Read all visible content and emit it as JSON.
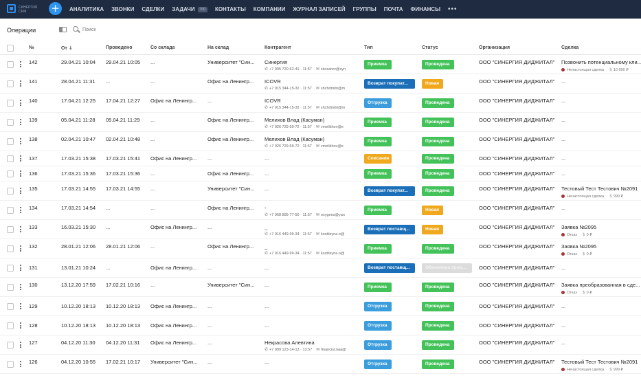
{
  "app": {
    "logo_text": "СИНЕРГИЯ CRM",
    "add_label": "+"
  },
  "nav": {
    "items": [
      "АНАЛИТИКА",
      "ЗВОНКИ",
      "СДЕЛКИ",
      "ЗАДАЧИ",
      "КОНТАКТЫ",
      "КОМПАНИИ",
      "ЖУРНАЛ ЗАПИСЕЙ",
      "ГРУППЫ",
      "ПОЧТА",
      "ФИНАНСЫ"
    ],
    "tasks_badge": "700",
    "more": "•••"
  },
  "toolbar": {
    "title": "Операции",
    "search_placeholder": "Поиск"
  },
  "columns": {
    "num": "№",
    "from": "От",
    "done": "Проведено",
    "from_wh": "Со склада",
    "to_wh": "На склад",
    "counterparty": "Контрагент",
    "type": "Тип",
    "status": "Статус",
    "org": "Организация",
    "deal": "Сделка"
  },
  "colors": {
    "green": "#44c25a",
    "blue_dark": "#1a6fb8",
    "blue": "#3b9ddc",
    "orange": "#f0a81c",
    "gray": "#dcdcdc"
  },
  "rows": [
    {
      "num": "142",
      "from": "29.04.21 10:04",
      "done": "29.04.21 10:05",
      "from_wh": "...",
      "to_wh": "Университет \"Син...",
      "cp": "Синергия",
      "cp_phone": "+7 905 720-62-41 · 11:57",
      "cp_mail": "skosarev@syn",
      "type": "Приемка",
      "type_color": "green",
      "status": "Проведена",
      "status_color": "green",
      "org": "ООО \"СИНЕРГИЯ ДИДЖИТАЛ\"",
      "deal": "Позвонить потенциальному кли...",
      "deal_stage": "Ненастоящая сделка",
      "deal_sum": "10 000 ₽"
    },
    {
      "num": "141",
      "from": "28.04.21 11:31",
      "done": "...",
      "from_wh": "...",
      "to_wh": "Офис на Ленингр...",
      "cp": "ICOVR",
      "cp_phone": "+7 915 344-15-32 · 11:57",
      "cp_mail": "shchdmitri@m",
      "type": "Возврат покупат...",
      "type_color": "blue_dark",
      "status": "Новая",
      "status_color": "orange",
      "org": "ООО \"СИНЕРГИЯ ДИДЖИТАЛ\"",
      "deal": "...",
      "deal_stage": "",
      "deal_sum": ""
    },
    {
      "num": "140",
      "from": "17.04.21 12:25",
      "done": "17.04.21 12:27",
      "from_wh": "Офис на Ленингр...",
      "to_wh": "...",
      "cp": "ICOVR",
      "cp_phone": "+7 915 344-15-32 · 11:57",
      "cp_mail": "shchdmitri@m",
      "type": "Отгрузка",
      "type_color": "blue",
      "status": "Проведена",
      "status_color": "green",
      "org": "ООО \"СИНЕРГИЯ ДИДЖИТАЛ\"",
      "deal": "...",
      "deal_stage": "",
      "deal_sum": ""
    },
    {
      "num": "139",
      "from": "05.04.21 11:28",
      "done": "05.04.21 11:29",
      "from_wh": "...",
      "to_wh": "Офис на Ленингр...",
      "cp": "Мелихов Влад (Касуман)",
      "cp_phone": "+7 926 729-59-72 · 11:57",
      "cp_mail": "vmelikhov@e",
      "type": "Приемка",
      "type_color": "green",
      "status": "Проведена",
      "status_color": "green",
      "org": "ООО \"СИНЕРГИЯ ДИДЖИТАЛ\"",
      "deal": "...",
      "deal_stage": "",
      "deal_sum": ""
    },
    {
      "num": "138",
      "from": "02.04.21 10:47",
      "done": "02.04.21 10:48",
      "from_wh": "...",
      "to_wh": "Офис на Ленингр...",
      "cp": "Мелихов Влад (Касуман)",
      "cp_phone": "+7 926 729-59-72 · 11:57",
      "cp_mail": "vmelikhov@e",
      "type": "Приемка",
      "type_color": "green",
      "status": "Проведена",
      "status_color": "green",
      "org": "ООО \"СИНЕРГИЯ ДИДЖИТАЛ\"",
      "deal": "...",
      "deal_stage": "",
      "deal_sum": ""
    },
    {
      "num": "137",
      "from": "17.03.21 15:38",
      "done": "17.03.21 15:41",
      "from_wh": "Офис на Ленингр...",
      "to_wh": "...",
      "cp": "...",
      "cp_phone": "",
      "cp_mail": "",
      "type": "Списание",
      "type_color": "orange",
      "status": "Проведена",
      "status_color": "green",
      "org": "ООО \"СИНЕРГИЯ ДИДЖИТАЛ\"",
      "deal": "...",
      "deal_stage": "",
      "deal_sum": ""
    },
    {
      "num": "136",
      "from": "17.03.21 15:36",
      "done": "17.03.21 15:36",
      "from_wh": "...",
      "to_wh": "Офис на Ленингр...",
      "cp": "...",
      "cp_phone": "",
      "cp_mail": "",
      "type": "Приемка",
      "type_color": "green",
      "status": "Проведена",
      "status_color": "green",
      "org": "ООО \"СИНЕРГИЯ ДИДЖИТАЛ\"",
      "deal": "...",
      "deal_stage": "",
      "deal_sum": ""
    },
    {
      "num": "135",
      "from": "17.03.21 14:55",
      "done": "17.03.21 14:55",
      "from_wh": "...",
      "to_wh": "Университет \"Син...",
      "cp": "...",
      "cp_phone": "",
      "cp_mail": "",
      "type": "Возврат покупат...",
      "type_color": "blue_dark",
      "status": "Проведена",
      "status_color": "green",
      "org": "ООО \"СИНЕРГИЯ ДИДЖИТАЛ\"",
      "deal": "Тестовый Тест Тестович №2091",
      "deal_stage": "Ненастоящая сделка",
      "deal_sum": "999 ₽"
    },
    {
      "num": "134",
      "from": "17.03.21 14:54",
      "done": "...",
      "from_wh": "...",
      "to_wh": "Офис на Ленингр...",
      "cp": "-",
      "cp_phone": "+7 968 895-77-50 · 11:57",
      "cp_mail": "oxygens@yan",
      "type": "Приемка",
      "type_color": "green",
      "status": "Новая",
      "status_color": "orange",
      "org": "ООО \"СИНЕРГИЯ ДИДЖИТАЛ\"",
      "deal": "...",
      "deal_stage": "",
      "deal_sum": ""
    },
    {
      "num": "133",
      "from": "16.03.21 15:30",
      "done": "...",
      "from_wh": "Офис на Ленингр...",
      "to_wh": "...",
      "cp": "_",
      "cp_phone": "+7 916 449-99-34 · 11:57",
      "cp_mail": "kostitsyna.o@",
      "type": "Возврат поставщ...",
      "type_color": "blue_dark",
      "status": "Новая",
      "status_color": "orange",
      "org": "ООО \"СИНЕРГИЯ ДИДЖИТАЛ\"",
      "deal": "Заявка №2095",
      "deal_stage": "Отказ",
      "deal_sum": "0 ₽"
    },
    {
      "num": "132",
      "from": "28.01.21 12:06",
      "done": "28.01.21 12:06",
      "from_wh": "...",
      "to_wh": "Офис на Ленингр...",
      "cp": "_",
      "cp_phone": "+7 916 449-99-34 · 11:57",
      "cp_mail": "kostitsyna.o@",
      "type": "Приемка",
      "type_color": "green",
      "status": "Проведена",
      "status_color": "green",
      "org": "ООО \"СИНЕРГИЯ ДИДЖИТАЛ\"",
      "deal": "Заявка №2095",
      "deal_stage": "Отказ",
      "deal_sum": "0 ₽"
    },
    {
      "num": "131",
      "from": "13.01.21 10:24",
      "done": "...",
      "from_wh": "Офис на Ленингр...",
      "to_wh": "...",
      "cp": "...",
      "cp_phone": "",
      "cp_mail": "",
      "type": "Возврат поставщ...",
      "type_color": "blue_dark",
      "status": "Обновлена пров...",
      "status_color": "gray",
      "org": "ООО \"СИНЕРГИЯ ДИДЖИТАЛ\"",
      "deal": "...",
      "deal_stage": "",
      "deal_sum": ""
    },
    {
      "num": "130",
      "from": "13.12.20 17:59",
      "done": "17.02.21 10:16",
      "from_wh": "...",
      "to_wh": "Университет \"Син...",
      "cp": "...",
      "cp_phone": "",
      "cp_mail": "",
      "type": "Приемка",
      "type_color": "green",
      "status": "Проведена",
      "status_color": "green",
      "org": "ООО \"СИНЕРГИЯ ДИДЖИТАЛ\"",
      "deal": "Заявка преобразованная в сде...",
      "deal_stage": "Отказ",
      "deal_sum": "0 ₽"
    },
    {
      "num": "129",
      "from": "10.12.20 18:13",
      "done": "10.12.20 18:13",
      "from_wh": "Офис на Ленингр...",
      "to_wh": "...",
      "cp": "...",
      "cp_phone": "",
      "cp_mail": "",
      "type": "Отгрузка",
      "type_color": "blue",
      "status": "Проведена",
      "status_color": "green",
      "org": "ООО \"СИНЕРГИЯ ДИДЖИТАЛ\"",
      "deal": "...",
      "deal_stage": "",
      "deal_sum": ""
    },
    {
      "num": "128",
      "from": "10.12.20 18:13",
      "done": "10.12.20 18:13",
      "from_wh": "Офис на Ленингр...",
      "to_wh": "...",
      "cp": "...",
      "cp_phone": "",
      "cp_mail": "",
      "type": "Отгрузка",
      "type_color": "blue",
      "status": "Проведена",
      "status_color": "green",
      "org": "ООО \"СИНЕРГИЯ ДИДЖИТАЛ\"",
      "deal": "...",
      "deal_stage": "",
      "deal_sum": ""
    },
    {
      "num": "127",
      "from": "04.12.20 11:30",
      "done": "04.12.20 11:31",
      "from_wh": "Офис на Ленингр...",
      "to_wh": "...",
      "cp": "Некрасова Алевтина",
      "cp_phone": "+7 999 123-14-13 · 13:57",
      "cp_mail": "financist.naa@",
      "type": "Отгрузка",
      "type_color": "blue",
      "status": "Проведена",
      "status_color": "green",
      "org": "ООО \"СИНЕРГИЯ ДИДЖИТАЛ\"",
      "deal": "...",
      "deal_stage": "",
      "deal_sum": ""
    },
    {
      "num": "126",
      "from": "04.12.20 10:55",
      "done": "17.02.21 10:17",
      "from_wh": "Университет \"Син...",
      "to_wh": "...",
      "cp": "...",
      "cp_phone": "",
      "cp_mail": "",
      "type": "Отгрузка",
      "type_color": "blue",
      "status": "Проведена",
      "status_color": "green",
      "org": "ООО \"СИНЕРГИЯ ДИДЖИТАЛ\"",
      "deal": "Тестовый Тест Тестович №2091",
      "deal_stage": "Ненастоящая сделка",
      "deal_sum": "999 ₽"
    }
  ]
}
